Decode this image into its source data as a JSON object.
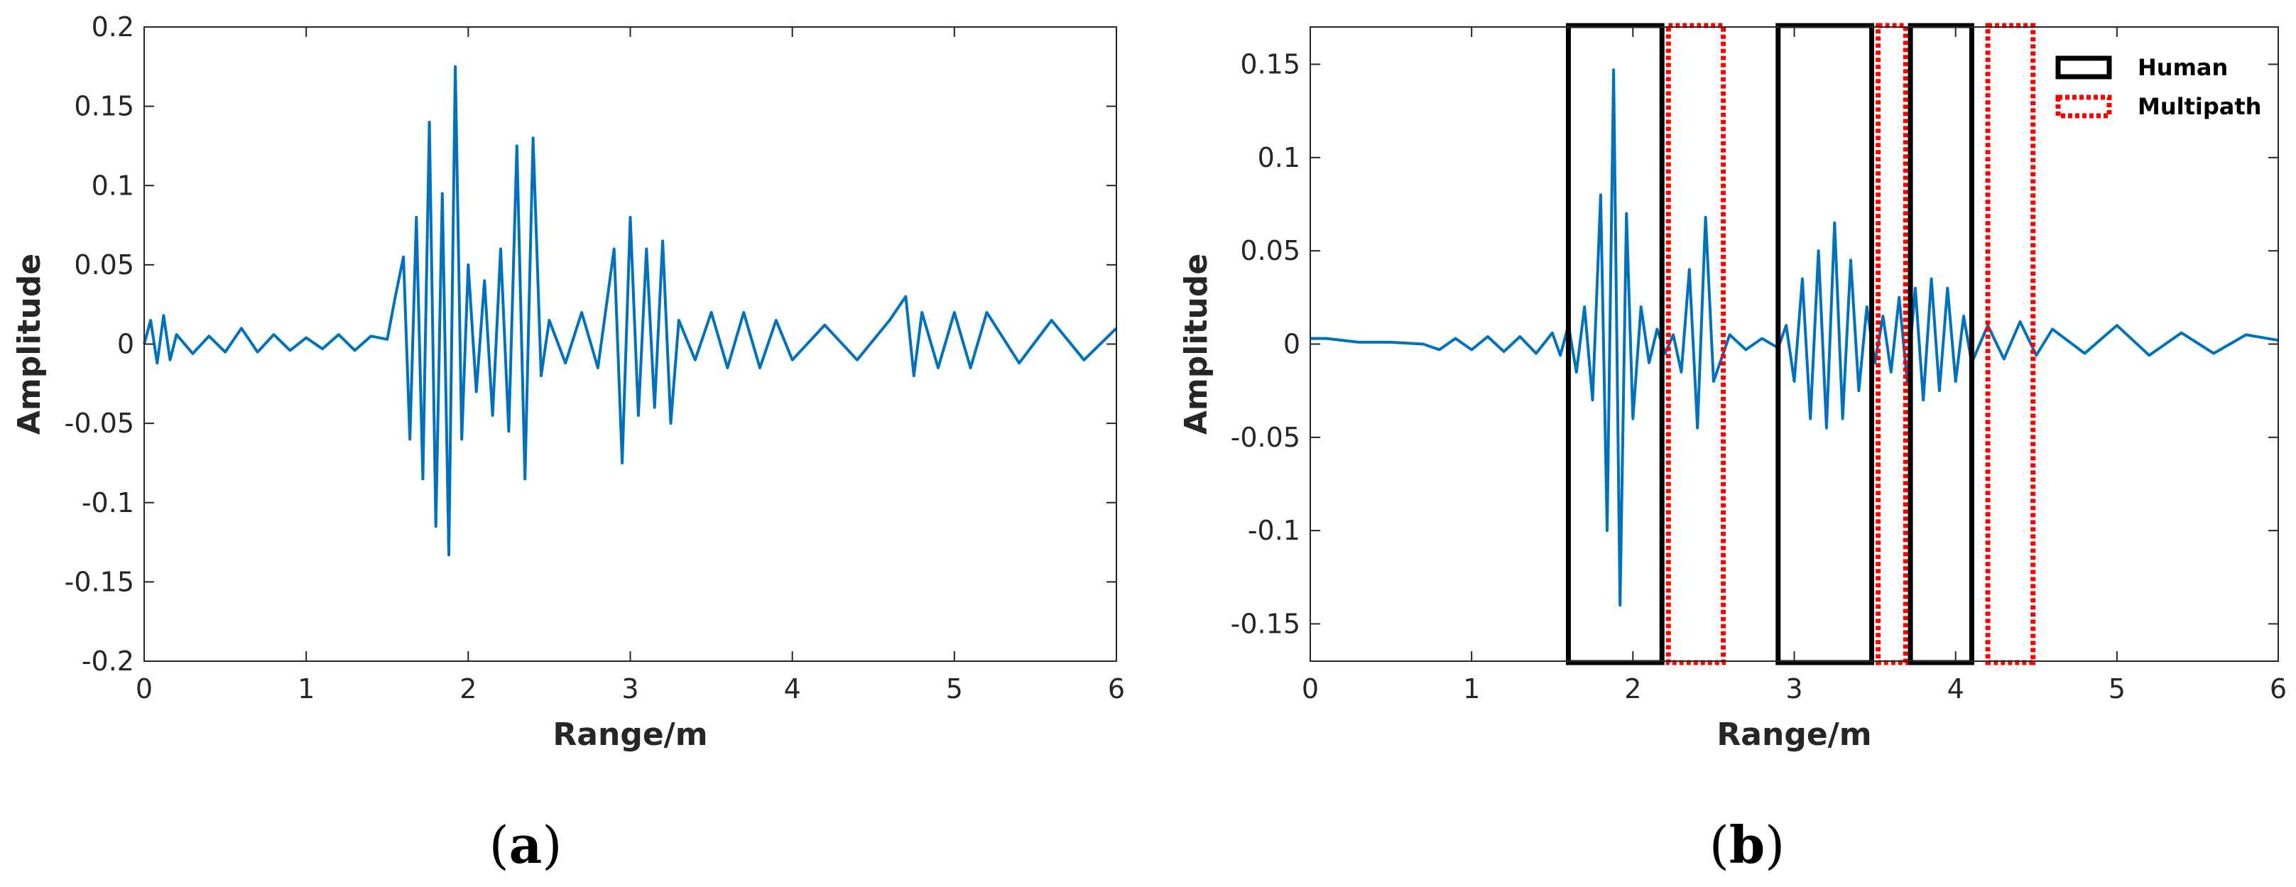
{
  "colors": {
    "series": "#0072BD",
    "human_box": "#000000",
    "multipath_box": "#FF0000",
    "axes": "#262626"
  },
  "chart_data": [
    {
      "type": "line",
      "caption": "a",
      "xlabel": "Range/m",
      "ylabel": "Amplitude",
      "xlim": [
        0,
        6
      ],
      "ylim": [
        -0.2,
        0.2
      ],
      "xticks": [
        0,
        1,
        2,
        3,
        4,
        5,
        6
      ],
      "yticks": [
        -0.2,
        -0.15,
        -0.1,
        -0.05,
        0,
        0.05,
        0.1,
        0.15,
        0.2
      ],
      "ytick_labels": [
        "-0.2",
        "-0.15",
        "-0.1",
        "-0.05",
        "0",
        "0.05",
        "0.1",
        "0.15",
        "0.2"
      ],
      "grid": false,
      "series": [
        {
          "x": [
            0,
            0.04,
            0.08,
            0.12,
            0.16,
            0.2,
            0.3,
            0.4,
            0.5,
            0.6,
            0.7,
            0.8,
            0.9,
            1.0,
            1.1,
            1.2,
            1.3,
            1.4,
            1.5,
            1.55,
            1.6,
            1.64,
            1.68,
            1.72,
            1.76,
            1.8,
            1.84,
            1.88,
            1.92,
            1.96,
            2.0,
            2.05,
            2.1,
            2.15,
            2.2,
            2.25,
            2.3,
            2.35,
            2.4,
            2.45,
            2.5,
            2.6,
            2.7,
            2.8,
            2.9,
            2.95,
            3.0,
            3.05,
            3.1,
            3.15,
            3.2,
            3.25,
            3.3,
            3.4,
            3.5,
            3.6,
            3.7,
            3.8,
            3.9,
            4.0,
            4.2,
            4.4,
            4.6,
            4.7,
            4.75,
            4.8,
            4.9,
            5.0,
            5.1,
            5.2,
            5.4,
            5.6,
            5.8,
            6.0
          ],
          "y": [
            0,
            0.015,
            -0.012,
            0.018,
            -0.01,
            0.006,
            -0.006,
            0.005,
            -0.005,
            0.01,
            -0.005,
            0.006,
            -0.004,
            0.004,
            -0.003,
            0.006,
            -0.004,
            0.005,
            0.003,
            0.03,
            0.055,
            -0.06,
            0.08,
            -0.085,
            0.14,
            -0.115,
            0.095,
            -0.133,
            0.175,
            -0.06,
            0.05,
            -0.03,
            0.04,
            -0.045,
            0.06,
            -0.055,
            0.125,
            -0.085,
            0.13,
            -0.02,
            0.015,
            -0.012,
            0.02,
            -0.015,
            0.06,
            -0.075,
            0.08,
            -0.045,
            0.06,
            -0.04,
            0.065,
            -0.05,
            0.015,
            -0.01,
            0.02,
            -0.015,
            0.02,
            -0.015,
            0.015,
            -0.01,
            0.012,
            -0.01,
            0.015,
            0.03,
            -0.02,
            0.02,
            -0.015,
            0.02,
            -0.015,
            0.02,
            -0.012,
            0.015,
            -0.01,
            0.01
          ]
        }
      ]
    },
    {
      "type": "line",
      "caption": "b",
      "xlabel": "Range/m",
      "ylabel": "Amplitude",
      "xlim": [
        0,
        6
      ],
      "ylim": [
        -0.17,
        0.17
      ],
      "xticks": [
        0,
        1,
        2,
        3,
        4,
        5,
        6
      ],
      "yticks": [
        -0.15,
        -0.1,
        -0.05,
        0,
        0.05,
        0.1,
        0.15
      ],
      "ytick_labels": [
        "-0.15",
        "-0.1",
        "-0.05",
        "0",
        "0.05",
        "0.1",
        "0.15"
      ],
      "grid": false,
      "legend": {
        "position": "top-right",
        "entries": [
          {
            "label": "Human",
            "style": "solid",
            "color": "#000000"
          },
          {
            "label": "Multipath",
            "style": "dotted",
            "color": "#FF0000"
          }
        ]
      },
      "regions": [
        {
          "kind": "Human",
          "x0": 1.6,
          "x1": 2.18
        },
        {
          "kind": "Multipath",
          "x0": 2.22,
          "x1": 2.56
        },
        {
          "kind": "Human",
          "x0": 2.9,
          "x1": 3.48
        },
        {
          "kind": "Multipath",
          "x0": 3.52,
          "x1": 3.69
        },
        {
          "kind": "Human",
          "x0": 3.72,
          "x1": 4.1
        },
        {
          "kind": "Multipath",
          "x0": 4.2,
          "x1": 4.48
        }
      ],
      "series": [
        {
          "x": [
            0,
            0.1,
            0.3,
            0.5,
            0.7,
            0.8,
            0.9,
            1.0,
            1.1,
            1.2,
            1.3,
            1.4,
            1.5,
            1.55,
            1.6,
            1.65,
            1.7,
            1.75,
            1.8,
            1.84,
            1.88,
            1.92,
            1.96,
            2.0,
            2.05,
            2.1,
            2.15,
            2.2,
            2.25,
            2.3,
            2.35,
            2.4,
            2.45,
            2.5,
            2.6,
            2.7,
            2.8,
            2.9,
            2.95,
            3.0,
            3.05,
            3.1,
            3.15,
            3.2,
            3.25,
            3.3,
            3.35,
            3.4,
            3.45,
            3.5,
            3.55,
            3.6,
            3.65,
            3.7,
            3.75,
            3.8,
            3.85,
            3.9,
            3.95,
            4.0,
            4.05,
            4.1,
            4.2,
            4.3,
            4.4,
            4.5,
            4.6,
            4.8,
            5.0,
            5.2,
            5.4,
            5.6,
            5.8,
            6.0
          ],
          "y": [
            0.003,
            0.003,
            0.001,
            0.001,
            0,
            -0.003,
            0.003,
            -0.003,
            0.004,
            -0.004,
            0.004,
            -0.005,
            0.006,
            -0.006,
            0.01,
            -0.015,
            0.02,
            -0.03,
            0.08,
            -0.1,
            0.147,
            -0.14,
            0.07,
            -0.04,
            0.02,
            -0.01,
            0.008,
            -0.005,
            0.005,
            -0.015,
            0.04,
            -0.045,
            0.068,
            -0.02,
            0.005,
            -0.003,
            0.003,
            -0.002,
            0.01,
            -0.02,
            0.035,
            -0.04,
            0.05,
            -0.045,
            0.065,
            -0.04,
            0.045,
            -0.025,
            0.02,
            -0.01,
            0.015,
            -0.015,
            0.025,
            -0.02,
            0.03,
            -0.03,
            0.035,
            -0.025,
            0.03,
            -0.02,
            0.015,
            -0.01,
            0.01,
            -0.008,
            0.012,
            -0.006,
            0.008,
            -0.005,
            0.01,
            -0.006,
            0.006,
            -0.005,
            0.005,
            0.002
          ]
        }
      ]
    }
  ]
}
